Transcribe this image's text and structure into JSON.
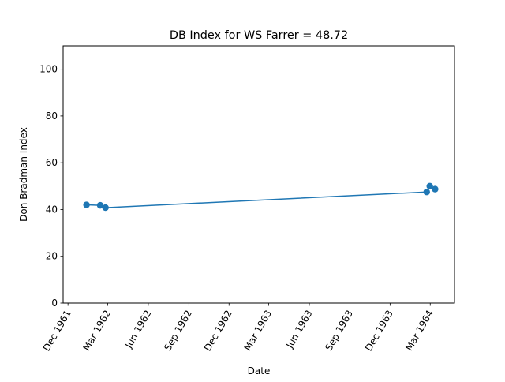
{
  "chart_data": {
    "type": "line",
    "title": "DB Index for WS Farrer = 48.72",
    "xlabel": "Date",
    "ylabel": "Don Bradman Index",
    "xlim": [
      "1961-11-20",
      "1964-04-25"
    ],
    "ylim": [
      0,
      110
    ],
    "yticks": [
      0,
      20,
      40,
      60,
      80,
      100
    ],
    "xticks": [
      {
        "date": "1961-12-01",
        "label": "Dec 1961"
      },
      {
        "date": "1962-03-01",
        "label": "Mar 1962"
      },
      {
        "date": "1962-06-01",
        "label": "Jun 1962"
      },
      {
        "date": "1962-09-01",
        "label": "Sep 1962"
      },
      {
        "date": "1962-12-01",
        "label": "Dec 1962"
      },
      {
        "date": "1963-03-01",
        "label": "Mar 1963"
      },
      {
        "date": "1963-06-01",
        "label": "Jun 1963"
      },
      {
        "date": "1963-09-01",
        "label": "Sep 1963"
      },
      {
        "date": "1963-12-01",
        "label": "Dec 1963"
      },
      {
        "date": "1964-03-01",
        "label": "Mar 1964"
      }
    ],
    "grid": false,
    "series": [
      {
        "color": "#1f77b4",
        "marker": "circle",
        "points": [
          {
            "x": "1962-01-12",
            "y": 42.0
          },
          {
            "x": "1962-02-12",
            "y": 41.8
          },
          {
            "x": "1962-02-24",
            "y": 40.8
          },
          {
            "x": "1964-02-22",
            "y": 47.5
          },
          {
            "x": "1964-02-29",
            "y": 50.0
          },
          {
            "x": "1964-03-12",
            "y": 48.72
          }
        ]
      }
    ]
  }
}
